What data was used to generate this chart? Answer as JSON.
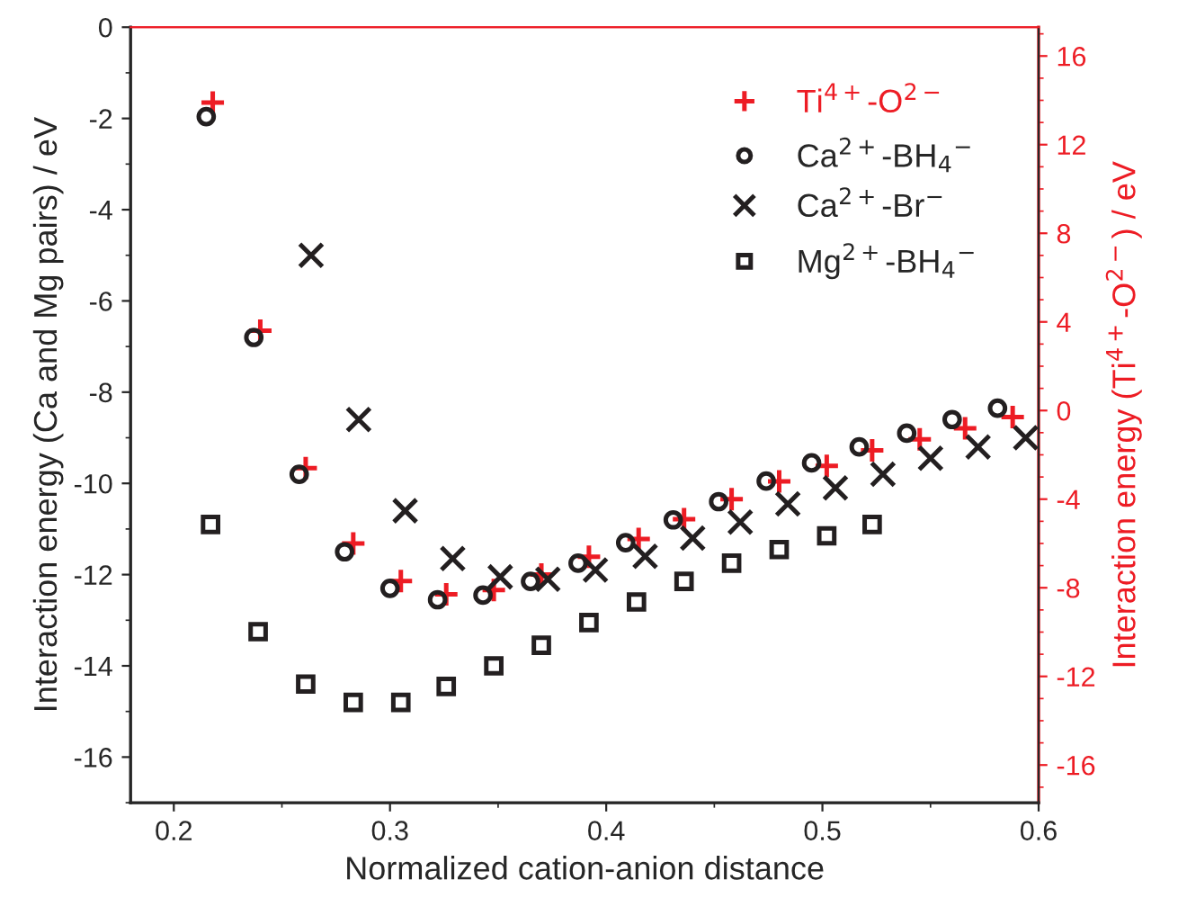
{
  "chart_data": {
    "type": "scatter",
    "xlabel": "Normalized cation-anion distance",
    "ylabel": "Interaction energy (Ca and Mg pairs) / eV",
    "y2label": "Interaction energy (Ti$^{4+}$-O$^{2−}$) / eV",
    "xlim": [
      0.18,
      0.6
    ],
    "xticks": [
      0.2,
      0.3,
      0.4,
      0.5,
      0.6
    ],
    "ylim": [
      -17,
      0
    ],
    "yticks": [
      0,
      -2,
      -4,
      -6,
      -8,
      -10,
      -12,
      -14,
      -16
    ],
    "y2lim": [
      -17.7,
      17.3
    ],
    "y2ticks": [
      16,
      12,
      8,
      4,
      0,
      -4,
      -8,
      -12,
      -16
    ],
    "grid": false,
    "legend": "top right",
    "series": [
      {
        "name": "Ti$^{4+}$-O$^{2−}$",
        "color": "#ed1c24",
        "marker": "plus",
        "axis": "y2",
        "x": [
          0.218,
          0.24,
          0.261,
          0.283,
          0.305,
          0.326,
          0.348,
          0.37,
          0.392,
          0.415,
          0.436,
          0.458,
          0.48,
          0.502,
          0.523,
          0.545,
          0.566,
          0.588
        ],
        "values": [
          13.9,
          3.6,
          -2.6,
          -6.0,
          -7.7,
          -8.3,
          -8.1,
          -7.4,
          -6.6,
          -5.8,
          -4.9,
          -4.0,
          -3.2,
          -2.5,
          -1.8,
          -1.3,
          -0.8,
          -0.3
        ]
      },
      {
        "name": "Ca$^{2+}$-BH$_{4}$$^{−}$",
        "color": "#231f20",
        "marker": "circle",
        "x": [
          0.215,
          0.237,
          0.258,
          0.279,
          0.3,
          0.322,
          0.343,
          0.365,
          0.387,
          0.409,
          0.431,
          0.452,
          0.474,
          0.495,
          0.517,
          0.539,
          0.56,
          0.581
        ],
        "values": [
          -1.96,
          -6.8,
          -9.8,
          -11.5,
          -12.3,
          -12.55,
          -12.45,
          -12.15,
          -11.75,
          -11.3,
          -10.8,
          -10.4,
          -9.95,
          -9.55,
          -9.2,
          -8.9,
          -8.6,
          -8.35
        ]
      },
      {
        "name": "Ca$^{2+}$-Br$^{−}$",
        "color": "#231f20",
        "marker": "x",
        "x": [
          0.2635,
          0.2855,
          0.307,
          0.329,
          0.351,
          0.373,
          0.395,
          0.418,
          0.44,
          0.462,
          0.484,
          0.506,
          0.528,
          0.55,
          0.572,
          0.594
        ],
        "values": [
          -5.0,
          -8.6,
          -10.6,
          -11.65,
          -12.05,
          -12.1,
          -11.9,
          -11.6,
          -11.2,
          -10.85,
          -10.45,
          -10.1,
          -9.8,
          -9.45,
          -9.2,
          -9.0
        ]
      },
      {
        "name": "Mg$^{2+}$-BH$_{4}$$^{−}$",
        "color": "#231f20",
        "marker": "square",
        "x": [
          0.217,
          0.239,
          0.261,
          0.283,
          0.305,
          0.326,
          0.348,
          0.37,
          0.392,
          0.414,
          0.436,
          0.458,
          0.48,
          0.502,
          0.523
        ],
        "values": [
          -10.9,
          -13.25,
          -14.4,
          -14.8,
          -14.8,
          -14.45,
          -14.0,
          -13.55,
          -13.05,
          -12.6,
          -12.15,
          -11.75,
          -11.45,
          -11.15,
          -10.9
        ]
      }
    ]
  }
}
